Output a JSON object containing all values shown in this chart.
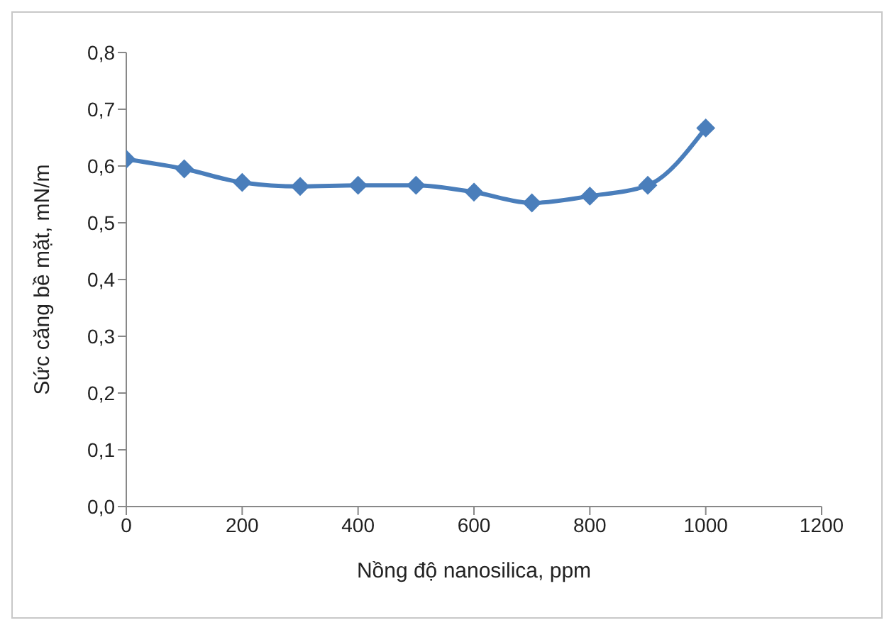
{
  "chart_data": {
    "type": "line",
    "xlabel": "Nồng độ nanosilica, ppm",
    "ylabel": "Sức căng bề mặt, mN/m",
    "x": [
      0,
      100,
      200,
      300,
      400,
      500,
      600,
      700,
      800,
      900,
      1000
    ],
    "series": [
      {
        "color": "#4a7ebb",
        "values": [
          0.612,
          0.595,
          0.571,
          0.564,
          0.566,
          0.566,
          0.554,
          0.535,
          0.547,
          0.566,
          0.667
        ]
      }
    ],
    "xlim": [
      0,
      1200
    ],
    "xticks": [
      0,
      200,
      400,
      600,
      800,
      1000,
      1200
    ],
    "ylim": [
      0,
      0.8
    ],
    "yticks": [
      {
        "value": 0,
        "label": "0,0"
      },
      {
        "value": 0.1,
        "label": "0,1"
      },
      {
        "value": 0.2,
        "label": "0,2"
      },
      {
        "value": 0.3,
        "label": "0,3"
      },
      {
        "value": 0.4,
        "label": "0,4"
      },
      {
        "value": 0.5,
        "label": "0,5"
      },
      {
        "value": 0.6,
        "label": "0,6"
      },
      {
        "value": 0.7,
        "label": "0,7"
      },
      {
        "value": 0.8,
        "label": "0,8"
      }
    ],
    "grid": false,
    "legend": false,
    "marker": "diamond",
    "line_style": "solid"
  }
}
